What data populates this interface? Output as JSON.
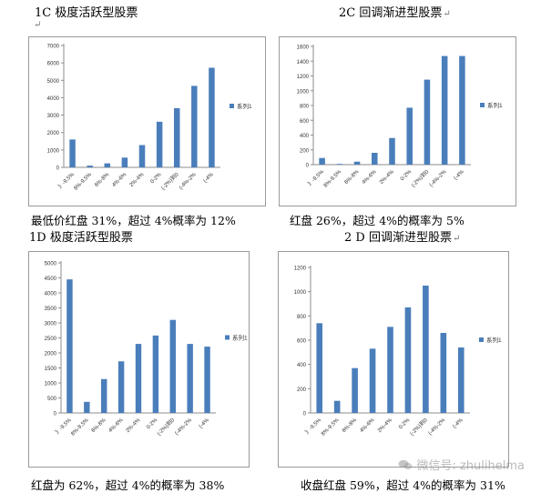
{
  "colors": {
    "bar": "#4a7ebb",
    "axis": "#8c8c8c",
    "frame": "#9a9a9a"
  },
  "panels": [
    {
      "heading": "1C  极度活跃型股票",
      "caption": "最低价红盘 31%，超过 4%概率为 12%"
    },
    {
      "heading": "2C 回调渐进型股票",
      "caption": "红盘 26%，超过 4%的概率为 5%"
    },
    {
      "heading": "1D  极度活跃型股票",
      "caption": "红盘为 62%，超过 4%的概率为 38%"
    },
    {
      "heading": "2 D  回调渐进型股票",
      "caption": "收盘红盘 59%，超过 4%的概率为 31%"
    }
  ],
  "watermark": {
    "text": "微信号: zhulihelma",
    "icon": "wechat-icon"
  },
  "chart_data": [
    {
      "type": "bar",
      "categories": [
        "》-9.5%",
        "8%-9.5%",
        "6%-8%",
        "4%-6%",
        "2%-4%",
        "0-2%",
        "(-2%)到0",
        "(-4%-2%",
        "(-4%"
      ],
      "series": [
        {
          "name": "系列1",
          "values": [
            1600,
            100,
            230,
            560,
            1280,
            2620,
            3400,
            4680,
            5720
          ]
        }
      ],
      "ylim": [
        0,
        7000
      ],
      "yticks": [
        0,
        1000,
        2000,
        3000,
        4000,
        5000,
        6000,
        7000
      ],
      "legend": "right",
      "grid": false,
      "xlabel": "",
      "ylabel": ""
    },
    {
      "type": "bar",
      "categories": [
        "》-9.5%",
        "8%-9.5%",
        "6%-8%",
        "4%-6%",
        "2%-4%",
        "0-2%",
        "(-2%)到0",
        "(-4%-2%",
        "(-4%"
      ],
      "series": [
        {
          "name": "系列1",
          "values": [
            90,
            10,
            40,
            160,
            360,
            770,
            1150,
            1470,
            1470
          ]
        }
      ],
      "ylim": [
        0,
        1600
      ],
      "yticks": [
        0,
        200,
        400,
        600,
        800,
        1000,
        1200,
        1400,
        1600
      ],
      "legend": "right",
      "grid": false,
      "xlabel": "",
      "ylabel": ""
    },
    {
      "type": "bar",
      "categories": [
        "》-9.5%",
        "8%-9.5%",
        "6%-8%",
        "4%-6%",
        "2%-4%",
        "0-2%",
        "(-2%)到0",
        "(-4%-2%",
        "(-4%"
      ],
      "series": [
        {
          "name": "系列1",
          "values": [
            4450,
            370,
            1130,
            1720,
            2300,
            2580,
            3100,
            2300,
            2210
          ]
        }
      ],
      "ylim": [
        0,
        5000
      ],
      "yticks": [
        0,
        500,
        1000,
        1500,
        2000,
        2500,
        3000,
        3500,
        4000,
        4500,
        5000
      ],
      "legend": "right",
      "grid": false,
      "xlabel": "",
      "ylabel": ""
    },
    {
      "type": "bar",
      "categories": [
        "》-9.5%",
        "8%-9.5%",
        "6%-8%",
        "4%-6%",
        "2%-4%",
        "0-2%",
        "(-2%)到0",
        "(-4%-2%",
        "(-4%"
      ],
      "series": [
        {
          "name": "系列1",
          "values": [
            740,
            100,
            370,
            530,
            710,
            870,
            1050,
            660,
            540
          ]
        }
      ],
      "ylim": [
        0,
        1200
      ],
      "yticks": [
        0,
        200,
        400,
        600,
        800,
        1000,
        1200
      ],
      "legend": "right",
      "grid": false,
      "xlabel": "",
      "ylabel": ""
    }
  ]
}
